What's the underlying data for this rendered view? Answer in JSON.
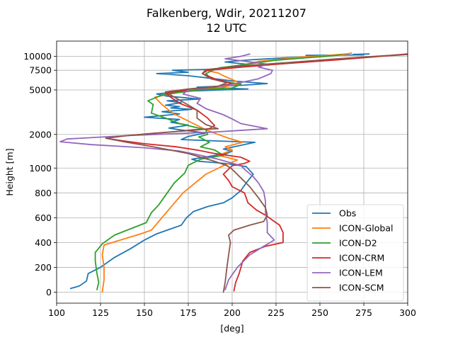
{
  "chart_data": {
    "type": "line",
    "title_line1": "Falkenberg, Wdir, 20211207",
    "title_line2": "12 UTC",
    "xlabel": "[deg]",
    "ylabel": "Height [m]",
    "xlim": [
      100,
      300
    ],
    "x_ticks": [
      100,
      125,
      150,
      175,
      200,
      225,
      250,
      275,
      300
    ],
    "y_ticks": [
      {
        "label": "0",
        "height": 0
      },
      {
        "label": "200",
        "height": 200
      },
      {
        "label": "400",
        "height": 400
      },
      {
        "label": "600",
        "height": 600
      },
      {
        "label": "800",
        "height": 800
      },
      {
        "label": "1000",
        "height": 1000
      },
      {
        "label": "2000",
        "height": 2000
      },
      {
        "label": "5000",
        "height": 5000
      },
      {
        "label": "7500",
        "height": 7500
      },
      {
        "label": "10000",
        "height": 10000
      }
    ],
    "y_scale": "piecewise: linear 0-1000 m, log above 1000 m",
    "grid": true,
    "legend_position": "lower-right",
    "series": [
      {
        "name": "Obs",
        "color": "#1f77b4",
        "points": [
          [
            108,
            30
          ],
          [
            113,
            50
          ],
          [
            117,
            90
          ],
          [
            118,
            150
          ],
          [
            125,
            200
          ],
          [
            133,
            280
          ],
          [
            142,
            350
          ],
          [
            150,
            420
          ],
          [
            157,
            470
          ],
          [
            165,
            510
          ],
          [
            171,
            540
          ],
          [
            174,
            600
          ],
          [
            178,
            650
          ],
          [
            186,
            690
          ],
          [
            195,
            720
          ],
          [
            200,
            760
          ],
          [
            205,
            820
          ],
          [
            208,
            880
          ],
          [
            212,
            950
          ],
          [
            208,
            1030
          ],
          [
            198,
            1090
          ],
          [
            190,
            1120
          ],
          [
            181,
            1150
          ],
          [
            177,
            1200
          ],
          [
            197,
            1350
          ],
          [
            200,
            1420
          ],
          [
            195,
            1480
          ],
          [
            205,
            1600
          ],
          [
            213,
            1700
          ],
          [
            190,
            1750
          ],
          [
            171,
            1800
          ],
          [
            175,
            1920
          ],
          [
            185,
            2060
          ],
          [
            170,
            2200
          ],
          [
            164,
            2280
          ],
          [
            175,
            2420
          ],
          [
            165,
            2570
          ],
          [
            170,
            2720
          ],
          [
            150,
            2850
          ],
          [
            170,
            3050
          ],
          [
            160,
            3200
          ],
          [
            177,
            3350
          ],
          [
            165,
            3450
          ],
          [
            170,
            3550
          ],
          [
            162,
            3650
          ],
          [
            171,
            3850
          ],
          [
            163,
            4000
          ],
          [
            181,
            4150
          ],
          [
            163,
            4400
          ],
          [
            157,
            4600
          ],
          [
            168,
            4800
          ],
          [
            178,
            4900
          ],
          [
            209,
            5100
          ],
          [
            180,
            5300
          ],
          [
            205,
            5500
          ],
          [
            220,
            5700
          ],
          [
            201,
            6000
          ],
          [
            190,
            6300
          ],
          [
            175,
            6700
          ],
          [
            157,
            7000
          ],
          [
            175,
            7200
          ],
          [
            166,
            7500
          ],
          [
            188,
            7650
          ],
          [
            202,
            8100
          ],
          [
            208,
            8500
          ],
          [
            196,
            8900
          ],
          [
            210,
            9300
          ],
          [
            230,
            9700
          ],
          [
            250,
            10000
          ],
          [
            242,
            10200
          ],
          [
            275,
            10300
          ],
          [
            269,
            10400
          ],
          [
            278,
            10500
          ]
        ]
      },
      {
        "name": "ICON-Global",
        "color": "#ff7f0e",
        "points": [
          [
            126,
            0
          ],
          [
            127,
            100
          ],
          [
            127,
            200
          ],
          [
            126,
            300
          ],
          [
            127,
            380
          ],
          [
            148,
            470
          ],
          [
            154,
            500
          ],
          [
            163,
            650
          ],
          [
            172,
            800
          ],
          [
            185,
            950
          ],
          [
            195,
            1050
          ],
          [
            203,
            1180
          ],
          [
            192,
            1300
          ],
          [
            200,
            1450
          ],
          [
            196,
            1550
          ],
          [
            206,
            1700
          ],
          [
            198,
            1850
          ],
          [
            192,
            2000
          ],
          [
            185,
            2200
          ],
          [
            178,
            2500
          ],
          [
            166,
            3100
          ],
          [
            160,
            3700
          ],
          [
            156,
            4300
          ],
          [
            170,
            4800
          ],
          [
            192,
            5200
          ],
          [
            205,
            5700
          ],
          [
            200,
            6200
          ],
          [
            195,
            6700
          ],
          [
            192,
            7100
          ],
          [
            185,
            7500
          ],
          [
            200,
            8000
          ],
          [
            215,
            9000
          ],
          [
            238,
            9800
          ],
          [
            255,
            10200
          ],
          [
            265,
            10500
          ],
          [
            268,
            10700
          ]
        ]
      },
      {
        "name": "ICON-D2",
        "color": "#2ca02c",
        "points": [
          [
            123,
            20
          ],
          [
            124,
            80
          ],
          [
            123,
            150
          ],
          [
            122,
            250
          ],
          [
            122,
            320
          ],
          [
            126,
            390
          ],
          [
            133,
            460
          ],
          [
            151,
            560
          ],
          [
            154,
            640
          ],
          [
            158,
            700
          ],
          [
            162,
            780
          ],
          [
            167,
            880
          ],
          [
            173,
            960
          ],
          [
            175,
            1060
          ],
          [
            182,
            1200
          ],
          [
            195,
            1300
          ],
          [
            190,
            1450
          ],
          [
            182,
            1550
          ],
          [
            187,
            1700
          ],
          [
            181,
            1900
          ],
          [
            186,
            2000
          ],
          [
            185,
            2200
          ],
          [
            170,
            2500
          ],
          [
            162,
            2800
          ],
          [
            154,
            3100
          ],
          [
            155,
            3700
          ],
          [
            152,
            4000
          ],
          [
            160,
            4500
          ],
          [
            180,
            5000
          ],
          [
            200,
            5200
          ],
          [
            205,
            5600
          ],
          [
            188,
            6300
          ],
          [
            185,
            7000
          ],
          [
            189,
            7500
          ],
          [
            193,
            7900
          ],
          [
            209,
            8500
          ],
          [
            224,
            9200
          ],
          [
            242,
            9700
          ],
          [
            254,
            10000
          ],
          [
            262,
            10300
          ]
        ]
      },
      {
        "name": "ICON-CRM",
        "color": "#d62728",
        "points": [
          [
            201,
            10
          ],
          [
            202,
            80
          ],
          [
            204,
            150
          ],
          [
            206,
            250
          ],
          [
            210,
            320
          ],
          [
            219,
            370
          ],
          [
            229,
            400
          ],
          [
            229,
            480
          ],
          [
            227,
            540
          ],
          [
            223,
            580
          ],
          [
            219,
            620
          ],
          [
            214,
            660
          ],
          [
            209,
            720
          ],
          [
            207,
            800
          ],
          [
            200,
            850
          ],
          [
            198,
            900
          ],
          [
            195,
            950
          ],
          [
            200,
            1050
          ],
          [
            207,
            1100
          ],
          [
            210,
            1150
          ],
          [
            205,
            1250
          ],
          [
            190,
            1350
          ],
          [
            180,
            1450
          ],
          [
            168,
            1550
          ],
          [
            150,
            1650
          ],
          [
            138,
            1750
          ],
          [
            128,
            1850
          ],
          [
            140,
            1950
          ],
          [
            155,
            2050
          ],
          [
            178,
            2180
          ],
          [
            187,
            2250
          ],
          [
            190,
            2400
          ],
          [
            186,
            2800
          ],
          [
            180,
            3300
          ],
          [
            170,
            3800
          ],
          [
            165,
            4300
          ],
          [
            162,
            4700
          ],
          [
            175,
            5000
          ],
          [
            190,
            5300
          ],
          [
            200,
            5700
          ],
          [
            190,
            6300
          ],
          [
            183,
            7000
          ],
          [
            186,
            7500
          ],
          [
            205,
            8000
          ],
          [
            230,
            8600
          ],
          [
            260,
            9300
          ],
          [
            285,
            10000
          ],
          [
            300,
            10400
          ]
        ]
      },
      {
        "name": "ICON-LEM",
        "color": "#9467bd",
        "points": [
          [
            196,
            20
          ],
          [
            198,
            100
          ],
          [
            203,
            200
          ],
          [
            210,
            300
          ],
          [
            218,
            370
          ],
          [
            224,
            420
          ],
          [
            220,
            480
          ],
          [
            220,
            560
          ],
          [
            219,
            640
          ],
          [
            219,
            730
          ],
          [
            218,
            810
          ],
          [
            215,
            880
          ],
          [
            212,
            930
          ],
          [
            207,
            990
          ],
          [
            205,
            1050
          ],
          [
            192,
            1200
          ],
          [
            180,
            1320
          ],
          [
            170,
            1420
          ],
          [
            150,
            1520
          ],
          [
            120,
            1620
          ],
          [
            102,
            1720
          ],
          [
            106,
            1820
          ],
          [
            140,
            1950
          ],
          [
            190,
            2100
          ],
          [
            200,
            2150
          ],
          [
            220,
            2250
          ],
          [
            205,
            2500
          ],
          [
            200,
            2750
          ],
          [
            195,
            3000
          ],
          [
            185,
            3400
          ],
          [
            180,
            3800
          ],
          [
            182,
            4200
          ],
          [
            172,
            4600
          ],
          [
            175,
            5000
          ],
          [
            197,
            5500
          ],
          [
            215,
            6300
          ],
          [
            222,
            7000
          ],
          [
            223,
            7500
          ],
          [
            215,
            8000
          ],
          [
            220,
            8500
          ],
          [
            208,
            9000
          ],
          [
            196,
            9500
          ],
          [
            205,
            10000
          ],
          [
            210,
            10500
          ]
        ]
      },
      {
        "name": "ICON-SCM",
        "color": "#8c564b",
        "points": [
          [
            195,
            0
          ],
          [
            196,
            80
          ],
          [
            197,
            200
          ],
          [
            198,
            300
          ],
          [
            199,
            400
          ],
          [
            198,
            460
          ],
          [
            201,
            500
          ],
          [
            210,
            540
          ],
          [
            218,
            570
          ],
          [
            220,
            620
          ],
          [
            219,
            680
          ],
          [
            215,
            760
          ],
          [
            210,
            850
          ],
          [
            205,
            920
          ],
          [
            200,
            990
          ],
          [
            197,
            1050
          ],
          [
            190,
            1150
          ],
          [
            175,
            1350
          ],
          [
            155,
            1550
          ],
          [
            140,
            1700
          ],
          [
            128,
            1850
          ],
          [
            140,
            1950
          ],
          [
            165,
            2100
          ],
          [
            178,
            2200
          ],
          [
            192,
            2250
          ],
          [
            185,
            2450
          ],
          [
            180,
            2800
          ],
          [
            180,
            3300
          ],
          [
            172,
            3900
          ],
          [
            166,
            4400
          ],
          [
            162,
            4800
          ],
          [
            175,
            5100
          ],
          [
            192,
            5400
          ],
          [
            197,
            5800
          ],
          [
            188,
            6300
          ],
          [
            183,
            7000
          ],
          [
            185,
            7600
          ],
          [
            205,
            8200
          ],
          [
            232,
            8800
          ],
          [
            260,
            9500
          ],
          [
            290,
            10200
          ],
          [
            300,
            10500
          ]
        ]
      }
    ]
  }
}
